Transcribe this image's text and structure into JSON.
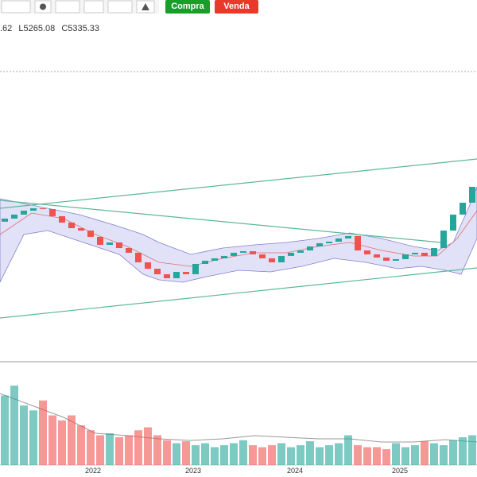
{
  "toolbar": {
    "buy": "Compra",
    "sell": "Venda"
  },
  "legend": [
    ".62",
    "L5265.08",
    "C5335.33"
  ],
  "chart_data": {
    "type": "candlestick",
    "open": [
      4430,
      4473,
      4528,
      4582,
      4615,
      4604,
      4506,
      4418,
      4341,
      4308,
      4221,
      4111,
      4144,
      4067,
      4002,
      3870,
      3782,
      3706,
      3651,
      3738,
      3706,
      3848,
      3892,
      3925,
      3958,
      4002,
      4023,
      3980,
      3925,
      3870,
      3958,
      4002,
      4034,
      4089,
      4133,
      4155,
      4199,
      4232,
      4034,
      3980,
      3936,
      3892,
      3914,
      3980,
      4002,
      3958,
      4067,
      4308,
      4528,
      4692
    ],
    "close": [
      4473,
      4528,
      4582,
      4615,
      4604,
      4506,
      4418,
      4341,
      4308,
      4221,
      4111,
      4144,
      4067,
      4002,
      3870,
      3782,
      3706,
      3651,
      3738,
      3706,
      3848,
      3892,
      3925,
      3958,
      4002,
      4023,
      3980,
      3925,
      3870,
      3958,
      4002,
      4034,
      4089,
      4133,
      4155,
      4199,
      4232,
      4034,
      3980,
      3936,
      3892,
      3914,
      3980,
      4002,
      3958,
      4067,
      4308,
      4528,
      4692,
      4911
    ],
    "ylim": [
      2500,
      6500
    ],
    "volume": {
      "values": [
        70,
        80,
        60,
        55,
        65,
        50,
        45,
        50,
        40,
        35,
        30,
        32,
        28,
        30,
        35,
        38,
        30,
        25,
        22,
        24,
        20,
        22,
        18,
        20,
        22,
        25,
        20,
        18,
        20,
        22,
        18,
        20,
        24,
        18,
        20,
        22,
        30,
        20,
        18,
        18,
        16,
        22,
        18,
        20,
        24,
        22,
        20,
        25,
        28,
        30
      ],
      "ylim": [
        0,
        100
      ]
    },
    "x_labels": [
      "2022",
      "2023",
      "2024",
      "2025"
    ],
    "up_color": "#26a69a",
    "down_color": "#ef5350"
  }
}
